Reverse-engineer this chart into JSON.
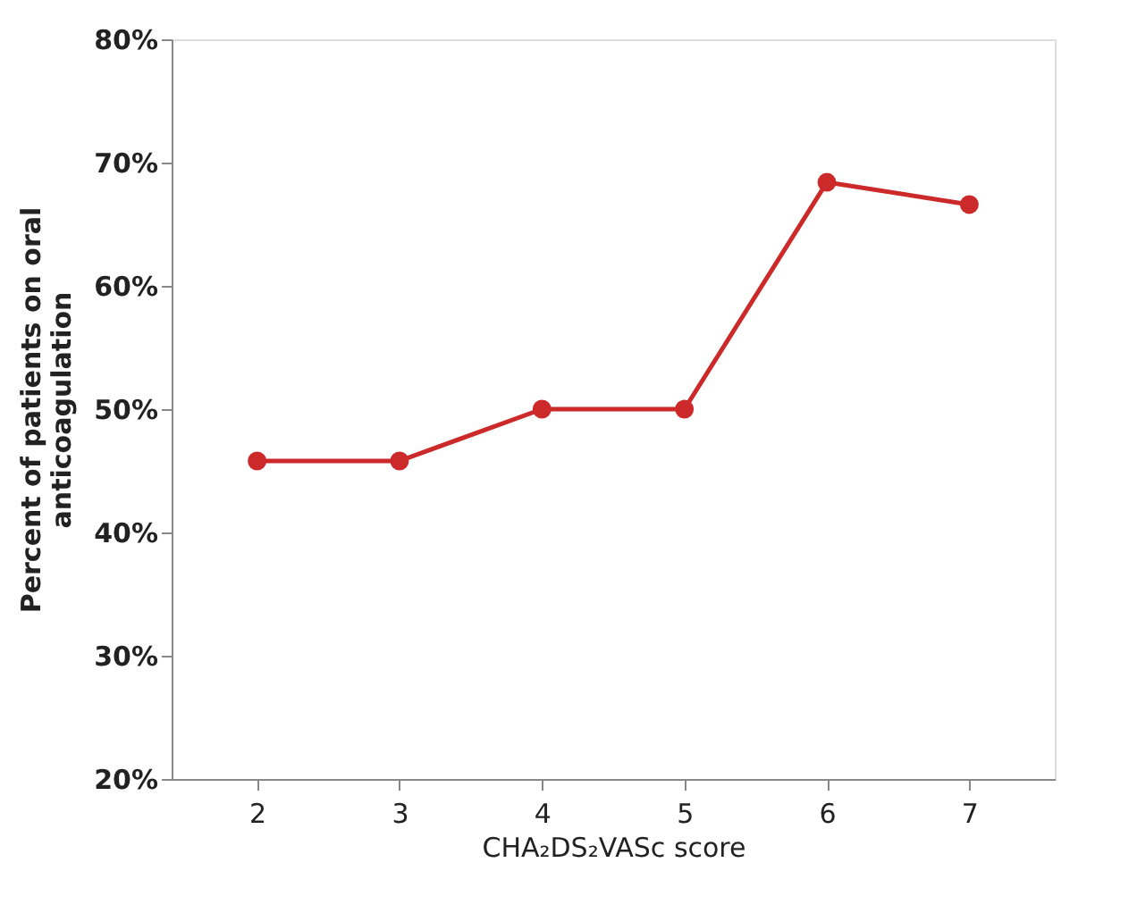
{
  "chart_data": {
    "type": "line",
    "xlabel": "CHA₂DS₂VASc score",
    "ylabel": "Percent of patients on oral\nanticoagulation",
    "categories": [
      "2",
      "3",
      "4",
      "5",
      "6",
      "7"
    ],
    "series": [
      {
        "color": "#cc2a2a",
        "values": [
          45.8,
          45.8,
          50.0,
          50.0,
          68.4,
          66.6
        ]
      }
    ],
    "ylim": [
      20,
      80
    ],
    "yticks": [
      {
        "value": 20,
        "label": "20%"
      },
      {
        "value": 30,
        "label": "30%"
      },
      {
        "value": 40,
        "label": "40%"
      },
      {
        "value": 50,
        "label": "50%"
      },
      {
        "value": 60,
        "label": "60%"
      },
      {
        "value": 70,
        "label": "70%"
      },
      {
        "value": 80,
        "label": "80%"
      }
    ],
    "grid": false,
    "marker": "circle",
    "line_style": "solid"
  }
}
